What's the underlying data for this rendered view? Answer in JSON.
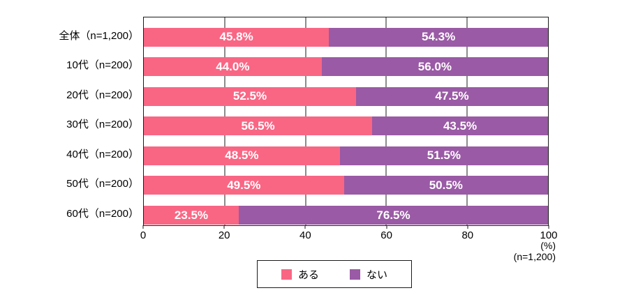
{
  "chart_data": {
    "type": "bar",
    "orientation": "horizontal",
    "stacked": true,
    "categories": [
      "全体（n=1,200）",
      "10代（n=200）",
      "20代（n=200）",
      "30代（n=200）",
      "40代（n=200）",
      "50代（n=200）",
      "60代（n=200）"
    ],
    "series": [
      {
        "name": "ある",
        "color": "#F96684",
        "values": [
          45.8,
          44.0,
          52.5,
          56.5,
          48.5,
          49.5,
          23.5
        ]
      },
      {
        "name": "ない",
        "color": "#9A5AA5",
        "values": [
          54.3,
          56.0,
          47.5,
          43.5,
          51.5,
          50.5,
          76.5
        ]
      }
    ],
    "value_suffix": "%",
    "xlim": [
      0,
      100
    ],
    "x_ticks": [
      0,
      20,
      40,
      60,
      80,
      100
    ],
    "grid": true,
    "x_unit_label": "(%)",
    "sample_note": "(n=1,200)",
    "legend_position": "bottom",
    "bar_label_color": "#ffffff",
    "axis_color": "#1a1a1a"
  },
  "legend": {
    "items": [
      {
        "label": "ある",
        "color": "#F96684"
      },
      {
        "label": "ない",
        "color": "#9A5AA5"
      }
    ]
  }
}
